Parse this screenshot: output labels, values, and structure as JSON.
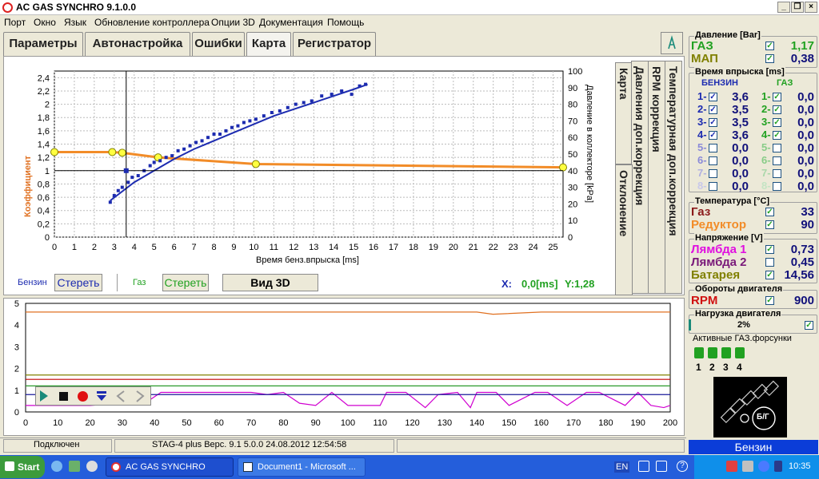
{
  "window": {
    "title": "AC GAS SYNCHRO  9.1.0.0"
  },
  "menu": [
    "Порт",
    "Окно",
    "Язык",
    "Обновление контроллера",
    "Опции 3D",
    "Документация",
    "Помощь"
  ],
  "tabs": [
    "Параметры",
    "Автонастройка",
    "Ошибки",
    "Карта",
    "Регистратор"
  ],
  "active_tab": "Карта",
  "side_tabs": [
    "Карта",
    "Давления доп.коррекция",
    "RPM коррекция",
    "Температурная доп.коррекция",
    "Отклонение"
  ],
  "chart": {
    "left_axis_label": "Коэффициент",
    "right_axis_label": "Давление в коллекторе [kPa]",
    "x_axis_label": "Время бенз.впрыска [ms]",
    "y_ticks": [
      "0",
      "0,2",
      "0,4",
      "0,6",
      "0,8",
      "1",
      "1,2",
      "1,4",
      "1,6",
      "1,8",
      "2",
      "2,2",
      "2,4"
    ],
    "x_ticks": [
      "0",
      "1",
      "2",
      "3",
      "4",
      "5",
      "6",
      "7",
      "8",
      "9",
      "10",
      "11",
      "12",
      "13",
      "14",
      "15",
      "16",
      "17",
      "18",
      "19",
      "20",
      "21",
      "22",
      "23",
      "24",
      "25"
    ],
    "right_ticks": [
      "0",
      "10",
      "20",
      "30",
      "40",
      "50",
      "60",
      "70",
      "80",
      "90",
      "100"
    ]
  },
  "chart_data": [
    {
      "type": "line",
      "title": "",
      "xlabel": "Время бенз.впрыска [ms]",
      "ylabel": "Коэффициент",
      "y2label": "Давление в коллекторе [kPa]",
      "xlim": [
        0,
        25.5
      ],
      "ylim": [
        0,
        2.5
      ],
      "y2lim": [
        0,
        100
      ],
      "grid": true,
      "series": [
        {
          "name": "",
          "color": "#f28c28",
          "axis": "left",
          "x": [
            0,
            2.9,
            3.4,
            5.2,
            10.1,
            25.5
          ],
          "y": [
            1.28,
            1.28,
            1.27,
            1.2,
            1.1,
            1.05
          ],
          "markers_x": [
            0,
            2.9,
            3.4,
            5.2,
            10.1,
            25.5
          ]
        },
        {
          "name": "",
          "color": "#1c2bb0",
          "axis": "right",
          "type": "scatter",
          "x": [
            2.8,
            3.0,
            3.2,
            3.4,
            3.7,
            3.9,
            4.2,
            4.5,
            4.8,
            5.0,
            5.3,
            5.6,
            5.9,
            6.2,
            6.5,
            6.8,
            7.1,
            7.4,
            7.7,
            8.0,
            8.3,
            8.6,
            8.9,
            9.2,
            9.5,
            9.8,
            10.1,
            10.5,
            10.9,
            11.3,
            11.7,
            12.1,
            12.5,
            12.9,
            13.4,
            13.9,
            14.4,
            14.9,
            15.3,
            15.6
          ],
          "y": [
            21,
            25,
            28,
            30,
            33,
            36,
            37,
            40,
            43,
            45,
            46,
            48,
            49,
            52,
            53,
            55,
            57,
            58,
            60,
            62,
            62,
            64,
            66,
            67,
            69,
            70,
            71,
            73,
            75,
            76,
            78,
            80,
            81,
            82,
            85,
            86,
            88,
            86,
            91,
            92
          ]
        },
        {
          "name": "",
          "color": "#1c2bb0",
          "axis": "right",
          "type": "line",
          "x": [
            2.8,
            4.0,
            5.0,
            6.0,
            7.0,
            8.0,
            9.0,
            10.0,
            11.0,
            12.0,
            13.0,
            14.0,
            15.0,
            15.7
          ],
          "y": [
            22,
            33,
            40,
            47,
            53,
            58,
            63,
            68,
            73,
            77,
            81,
            85,
            89,
            92
          ]
        }
      ]
    },
    {
      "type": "line",
      "title": "",
      "xlim": [
        0,
        200
      ],
      "ylim": [
        0,
        5
      ],
      "x_ticks": [
        0,
        10,
        20,
        30,
        40,
        50,
        60,
        70,
        80,
        90,
        100,
        110,
        120,
        130,
        140,
        150,
        160,
        170,
        180,
        190,
        200
      ],
      "y_ticks": [
        0,
        1,
        2,
        3,
        4,
        5
      ],
      "series": [
        {
          "name": "",
          "color": "#e07020",
          "x": [
            0,
            140,
            145,
            160,
            200
          ],
          "y": [
            4.6,
            4.6,
            4.5,
            4.6,
            4.6
          ]
        },
        {
          "name": "",
          "color": "#808000",
          "x": [
            0,
            200
          ],
          "y": [
            1.7,
            1.7
          ]
        },
        {
          "name": "",
          "color": "#c00000",
          "x": [
            0,
            200
          ],
          "y": [
            1.5,
            1.5
          ]
        },
        {
          "name": "",
          "color": "#2a9a2a",
          "x": [
            0,
            200
          ],
          "y": [
            1.2,
            1.2
          ]
        },
        {
          "name": "",
          "color": "#d000d0",
          "x": [
            0,
            10,
            20,
            30,
            38,
            42,
            50,
            60,
            70,
            75,
            80,
            85,
            90,
            95,
            100,
            110,
            112,
            118,
            124,
            128,
            134,
            138,
            140,
            146,
            150,
            158,
            162,
            168,
            174,
            178,
            186,
            190,
            194,
            198,
            200
          ],
          "y": [
            0.3,
            0.3,
            0.3,
            0.4,
            0.5,
            0.9,
            0.9,
            0.9,
            0.9,
            0.8,
            0.9,
            0.4,
            0.3,
            0.9,
            0.3,
            0.3,
            0.9,
            0.9,
            0.2,
            0.8,
            0.9,
            0.2,
            0.9,
            0.9,
            0.3,
            0.9,
            0.9,
            0.3,
            0.9,
            0.9,
            0.3,
            0.9,
            0.3,
            0.2,
            0.3
          ]
        },
        {
          "name": "",
          "color": "#1a1a9a",
          "x": [
            0,
            200
          ],
          "y": [
            0.8,
            0.8
          ]
        }
      ]
    }
  ],
  "controls": {
    "benzin_label": "Бензин",
    "clear_label": "Стереть",
    "gas_label": "Газ",
    "clear2_label": "Стереть",
    "view3d_label": "Вид 3D",
    "x_readout_label": "X:",
    "x_readout_value": "0,0[ms]",
    "y_readout": "Y:1,28"
  },
  "right_panel": {
    "pressure_title": "Давление [Bar]",
    "gas_label": "ГАЗ",
    "gas_value": "1,17",
    "map_label": "МАП",
    "map_value": "0,38",
    "inj_title": "Время впрыска [ms]",
    "benzin_header": "БЕНЗИН",
    "gas_header": "ГАЗ",
    "injectors": [
      {
        "n": "1-",
        "benz": "3,6",
        "gas": "0,0",
        "active": true
      },
      {
        "n": "2-",
        "benz": "3,5",
        "gas": "0,0",
        "active": true
      },
      {
        "n": "3-",
        "benz": "3,5",
        "gas": "0,0",
        "active": true
      },
      {
        "n": "4-",
        "benz": "3,6",
        "gas": "0,0",
        "active": true
      },
      {
        "n": "5-",
        "benz": "0,0",
        "gas": "0,0",
        "active": false
      },
      {
        "n": "6-",
        "benz": "0,0",
        "gas": "0,0",
        "active": false
      },
      {
        "n": "7-",
        "benz": "0,0",
        "gas": "0,0",
        "active": false
      },
      {
        "n": "8-",
        "benz": "0,0",
        "gas": "0,0",
        "active": false
      }
    ],
    "temp_title": "Температура [°C]",
    "temp_gas_label": "Газ",
    "temp_gas_value": "33",
    "temp_red_label": "Редуктор",
    "temp_red_value": "90",
    "volt_title": "Напряжение [V]",
    "lambda1_label": "Лямбда 1",
    "lambda1_value": "0,73",
    "lambda2_label": "Лямбда 2",
    "lambda2_value": "0,45",
    "battery_label": "Батарея",
    "battery_value": "14,56",
    "rpm_title": "Обороты двигателя",
    "rpm_label": "RPM",
    "rpm_value": "900",
    "load_title": "Нагрузка двигателя",
    "load_value": "2%",
    "load_fraction": 0.02,
    "active_title": "Активные ГАЗ.форсунки",
    "active_nums": [
      "1",
      "2",
      "3",
      "4"
    ],
    "bg_label": "Б/Г",
    "mode_label": "Бензин"
  },
  "status": {
    "connection": "Подключен",
    "device": "STAG-4 plus   Верс. 9.1  5.0.0    24.08.2012 12:54:58"
  },
  "taskbar": {
    "start": "Start",
    "task1": "AC GAS SYNCHRO",
    "task2": "Document1 - Microsoft ...",
    "lang": "EN",
    "clock": "10:35"
  },
  "colors": {
    "accent_blue": "#1c2bb0",
    "orange": "#f28c28",
    "green_value": "#21a121",
    "navy_value": "#10107a"
  }
}
